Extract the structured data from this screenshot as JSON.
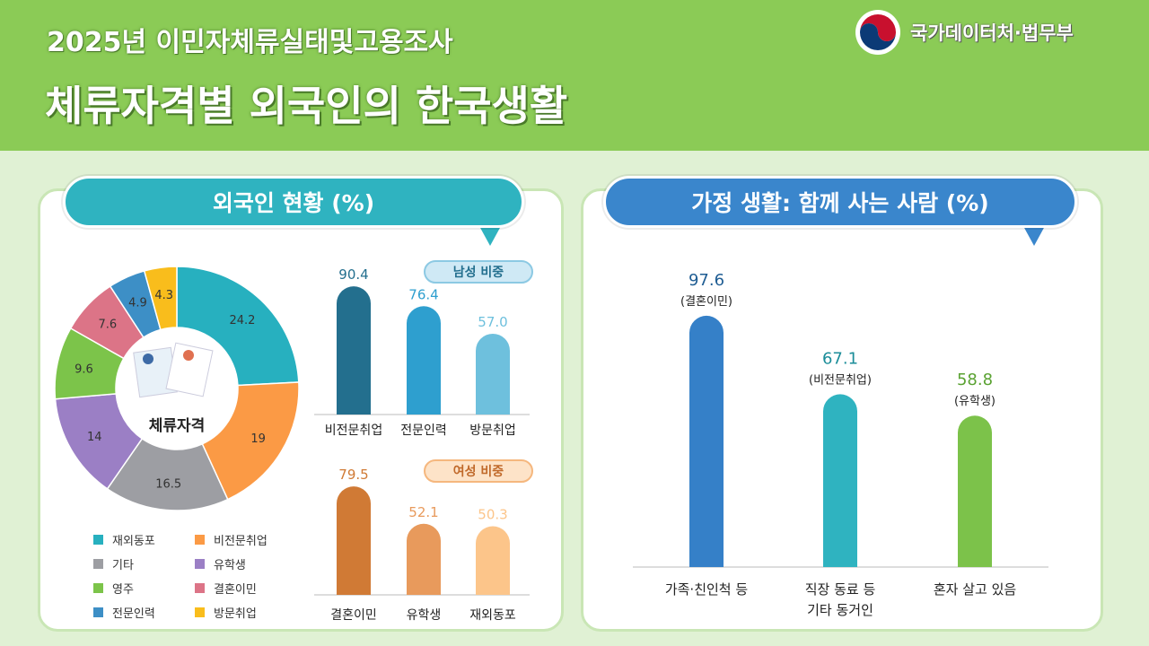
{
  "header": {
    "subtitle": "2025년 이민자체류실태및고용조사",
    "title": "체류자격별 외국인의 한국생활",
    "agency": "국가데이터처·법무부"
  },
  "chart_data": [
    {
      "type": "pie",
      "title": "외국인 현황 (%)",
      "center_label": "체류자격",
      "categories": [
        "재외동포",
        "비전문취업",
        "기타",
        "유학생",
        "영주",
        "결혼이민",
        "전문인력",
        "방문취업"
      ],
      "values": [
        24.2,
        19.0,
        16.5,
        14.0,
        9.6,
        7.6,
        4.9,
        4.3
      ],
      "colors": [
        "#27b0bf",
        "#fb9a45",
        "#9d9ea3",
        "#9b7fc5",
        "#7cc44a",
        "#dc7487",
        "#3d8fc6",
        "#f9bd1c"
      ],
      "legend": [
        "재외동포",
        "비전문취업",
        "기타",
        "유학생",
        "영주",
        "결혼이민",
        "전문인력",
        "방문취업"
      ]
    },
    {
      "type": "bar",
      "title": "남성 비중",
      "categories": [
        "비전문취업",
        "전문인력",
        "방문취업"
      ],
      "values": [
        90.4,
        76.4,
        57.0
      ],
      "labels": [
        "90.4",
        "76.4",
        "57.0"
      ],
      "colors": [
        "#236f8e",
        "#2e9fcf",
        "#6ec0dd"
      ]
    },
    {
      "type": "bar",
      "title": "여성 비중",
      "categories": [
        "결혼이민",
        "유학생",
        "재외동포"
      ],
      "values": [
        79.5,
        52.1,
        50.3
      ],
      "labels": [
        "79.5",
        "52.1",
        "50.3"
      ],
      "colors": [
        "#d07a35",
        "#e89a5c",
        "#fcc58a"
      ]
    },
    {
      "type": "bar",
      "title": "가정 생활: 함께 사는 사람 (%)",
      "categories": [
        "가족·친인척 등",
        "직장 동료 등 기타 동거인",
        "혼자 살고 있음"
      ],
      "cat_lines": [
        [
          "가족·친인척 등"
        ],
        [
          "직장 동료 등",
          "기타 동거인"
        ],
        [
          "혼자 살고 있음"
        ]
      ],
      "values": [
        97.6,
        67.1,
        58.8
      ],
      "labels": [
        "97.6",
        "67.1",
        "58.8"
      ],
      "sublabels": [
        "(결혼이민)",
        "(비전문취업)",
        "(유학생)"
      ],
      "colors": [
        "#3580c8",
        "#2fb3c0",
        "#7cc24a"
      ],
      "label_colors": [
        "#1f5d93",
        "#1b8d99",
        "#5aa232"
      ]
    }
  ]
}
